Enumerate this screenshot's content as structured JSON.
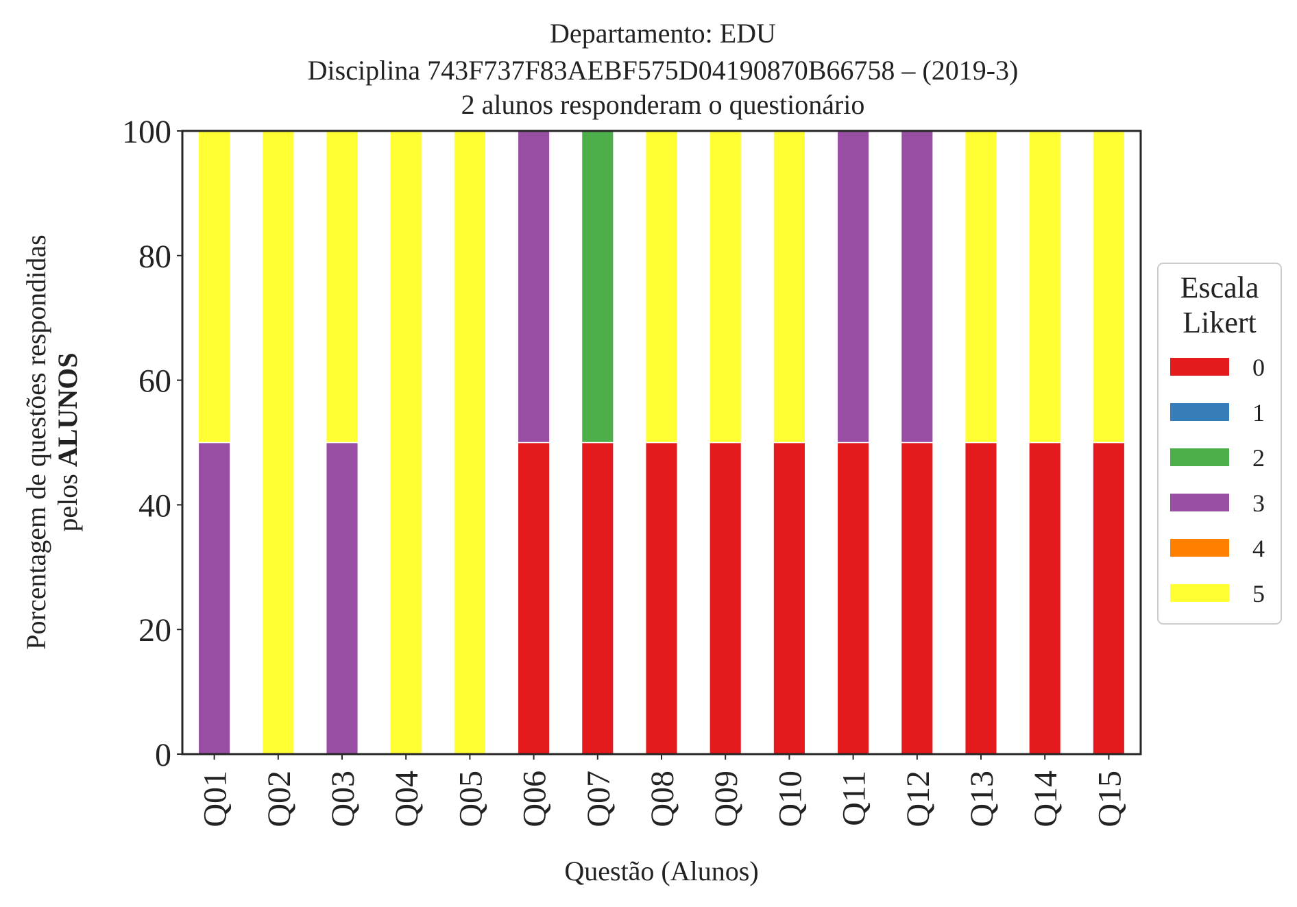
{
  "chart_data": {
    "type": "bar",
    "stacked": true,
    "title_lines": [
      "Departamento: EDU",
      "Disciplina 743F737F83AEBF575D04190870B66758 – (2019-3)",
      "2 alunos responderam o questionário"
    ],
    "xlabel": "Questão (Alunos)",
    "ylabel_line1": "Porcentagem de questões respondidas",
    "ylabel_line2_prefix": "pelos ",
    "ylabel_line2_bold": "ALUNOS",
    "ylim": [
      0,
      100
    ],
    "yticks": [
      "0",
      "20",
      "40",
      "60",
      "80",
      "100"
    ],
    "categories": [
      "Q01",
      "Q02",
      "Q03",
      "Q04",
      "Q05",
      "Q06",
      "Q07",
      "Q08",
      "Q09",
      "Q10",
      "Q11",
      "Q12",
      "Q13",
      "Q14",
      "Q15"
    ],
    "series": [
      {
        "name": "0",
        "color": "#e41a1c",
        "values": [
          0,
          0,
          0,
          0,
          0,
          50,
          50,
          50,
          50,
          50,
          50,
          50,
          50,
          50,
          50
        ]
      },
      {
        "name": "1",
        "color": "#377eb8",
        "values": [
          0,
          0,
          0,
          0,
          0,
          0,
          0,
          0,
          0,
          0,
          0,
          0,
          0,
          0,
          0
        ]
      },
      {
        "name": "2",
        "color": "#4daf4a",
        "values": [
          0,
          0,
          0,
          0,
          0,
          0,
          50,
          0,
          0,
          0,
          0,
          0,
          0,
          0,
          0
        ]
      },
      {
        "name": "3",
        "color": "#984ea3",
        "values": [
          50,
          0,
          50,
          0,
          0,
          50,
          0,
          0,
          0,
          0,
          50,
          50,
          0,
          0,
          0
        ]
      },
      {
        "name": "4",
        "color": "#ff7f00",
        "values": [
          0,
          0,
          0,
          0,
          0,
          0,
          0,
          0,
          0,
          0,
          0,
          0,
          0,
          0,
          0
        ]
      },
      {
        "name": "5",
        "color": "#ffff33",
        "values": [
          50,
          100,
          50,
          100,
          100,
          0,
          0,
          50,
          50,
          50,
          0,
          0,
          50,
          50,
          50
        ]
      }
    ],
    "legend": {
      "title_lines": [
        "Escala",
        "Likert"
      ],
      "position": "right"
    },
    "grid": false
  }
}
